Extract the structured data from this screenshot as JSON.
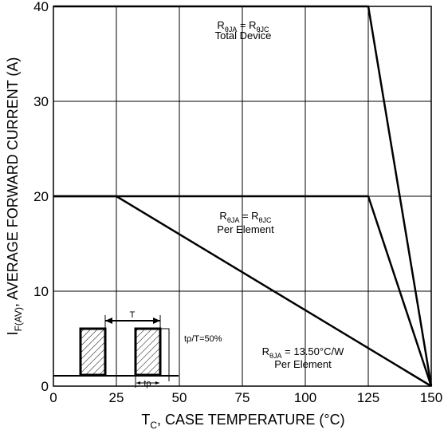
{
  "chart_data": {
    "type": "line",
    "xlabel": {
      "main": "T",
      "sub": "C",
      "rest": ", CASE TEMPERATURE (°C)"
    },
    "ylabel": {
      "main": "I",
      "sub": "F(AV)",
      "rest": ",  AVERAGE FORWARD CURRENT (A)"
    },
    "xlim": [
      0,
      150
    ],
    "ylim": [
      0,
      40
    ],
    "xticks": [
      0,
      25,
      50,
      75,
      100,
      125,
      150
    ],
    "yticks": [
      0,
      10,
      20,
      30,
      40
    ],
    "grid": true,
    "series": [
      {
        "x": [
          0,
          125,
          150
        ],
        "y": [
          40,
          40,
          0
        ]
      },
      {
        "x": [
          0,
          125,
          150
        ],
        "y": [
          20,
          20,
          0
        ]
      },
      {
        "x": [
          0,
          25,
          150
        ],
        "y": [
          20,
          20,
          0
        ]
      }
    ],
    "annotations": [
      {
        "line1": {
          "main": "R",
          "sub": "θJA",
          "mid": " = R",
          "sub2": "θJC"
        },
        "line2": "Total Device"
      },
      {
        "line1": {
          "main": "R",
          "sub": "θJA",
          "mid": " = R",
          "sub2": "θJC"
        },
        "line2": "Per Element"
      },
      {
        "line1": {
          "main": "R",
          "sub": "θJA",
          "mid": " = 13.50°C/W",
          "sub2": ""
        },
        "line2": "Per Element"
      }
    ],
    "inset": {
      "period_label": "T",
      "pulse_label": "tρ",
      "duty_label": "tρ/T=50%"
    }
  }
}
